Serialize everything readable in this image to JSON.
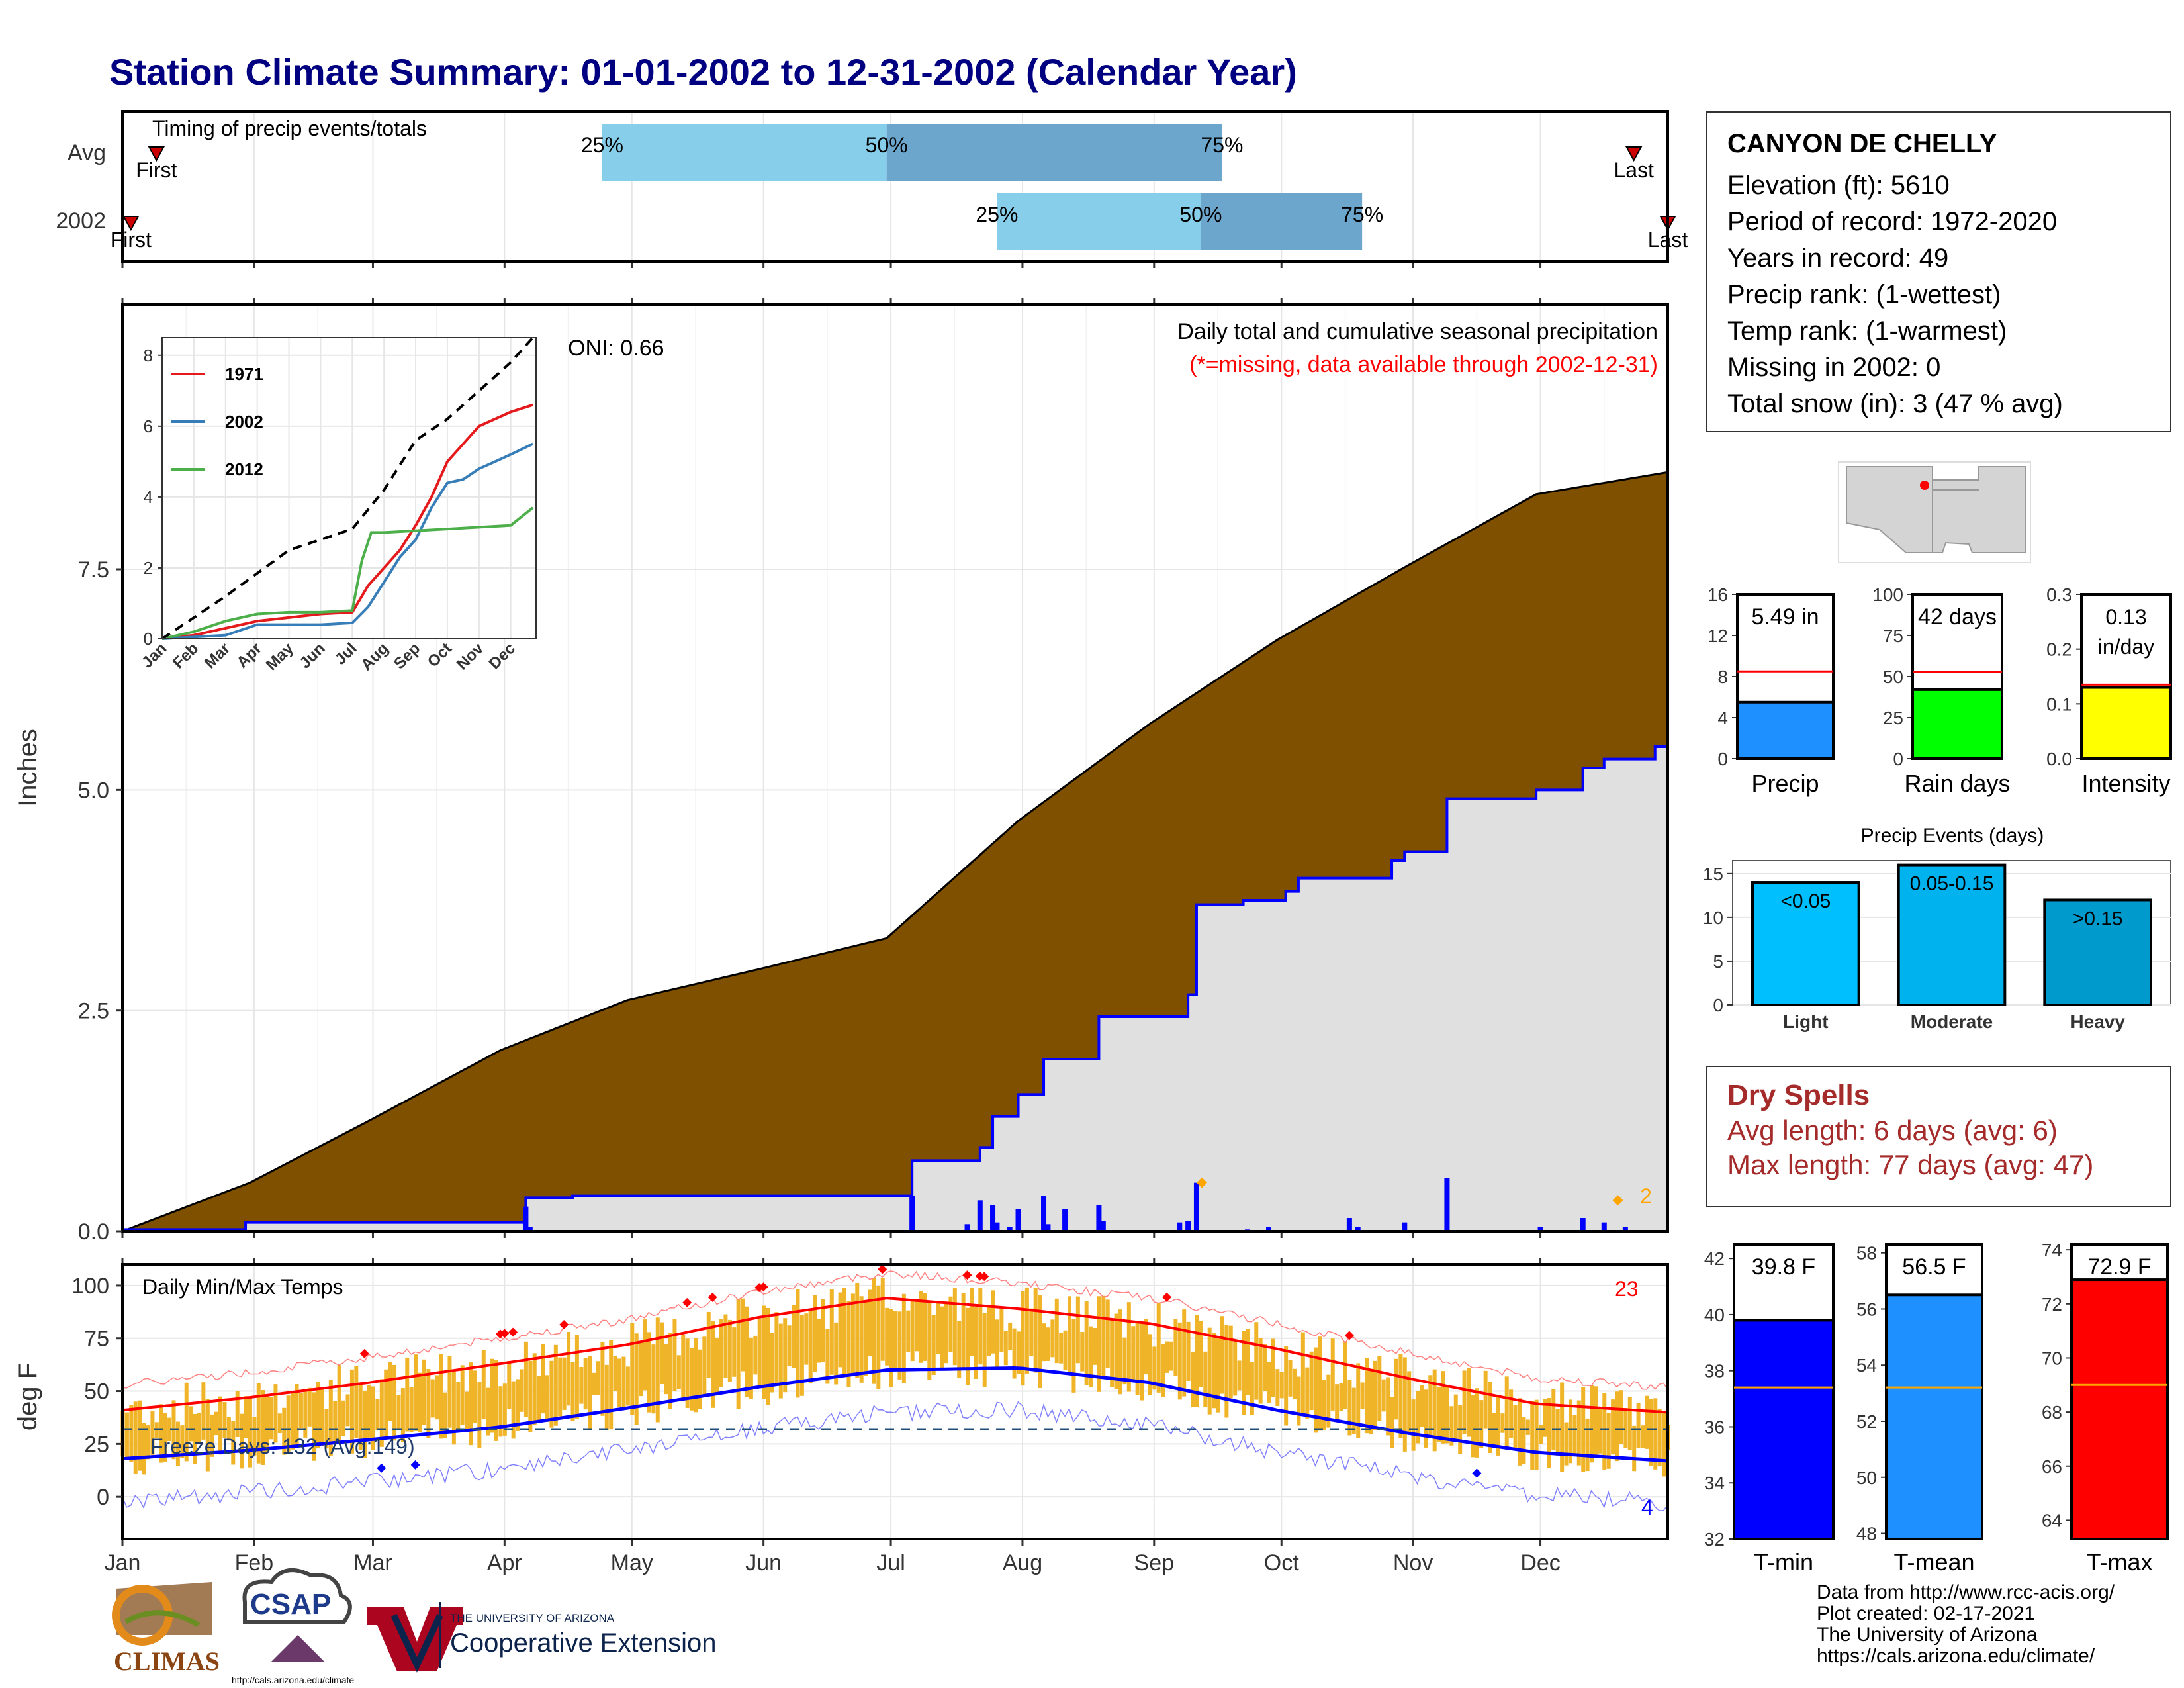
{
  "title": "Station Climate Summary: 01-01-2002 to 12-31-2002 (Calendar Year)",
  "station": {
    "name": "CANYON DE CHELLY",
    "lines": [
      "Elevation (ft): 5610",
      "Period of record: 1972-2020",
      "Years in record: 49",
      "Precip rank:  (1-wettest)",
      "Temp rank:  (1-warmest)",
      "Missing in 2002: 0",
      "Total snow (in): 3 (47 % avg)"
    ]
  },
  "dry_spells": {
    "title": "Dry Spells",
    "avg": "Avg length: 6 days (avg: 6)",
    "max": "Max length: 77 days (avg: 47)"
  },
  "footer": {
    "lines": [
      "Data from http://www.rcc-acis.org/",
      "Plot created: 02-17-2021",
      "The University of Arizona",
      "https://cals.arizona.edu/climate/"
    ],
    "logos": {
      "climas": "CLIMAS",
      "csap": "CSAP",
      "csap_url": "http://cals.arizona.edu/climate",
      "ua_small": "THE UNIVERSITY OF ARIZONA",
      "ua_big": "Cooperative Extension"
    }
  },
  "colors": {
    "title": "#000080",
    "cumulative_avg_fill": "#7F5000",
    "cumulative_year_fill": "#E0E0E0",
    "year_line": "#0000FF",
    "tmax_bar": "#F0B429",
    "tmax_line": "#FF0000",
    "tmin_line": "#0000FF",
    "missing_text": "#FF0000",
    "dry_spells": "#A52A2A"
  },
  "chart_data": [
    {
      "id": "timing",
      "type": "bar",
      "title": "Timing of precip events/totals",
      "categories": [
        "Avg",
        "2002"
      ],
      "bars": [
        {
          "row": "Avg",
          "p25": "2002-04-24",
          "p50": "2002-06-30",
          "p75": "2002-09-17",
          "first": "2002-01-09",
          "last": "2002-12-23"
        },
        {
          "row": "2002",
          "p25": "2002-07-26",
          "p50": "2002-09-12",
          "p75": "2002-10-20",
          "first": "2002-01-03",
          "last": "2002-12-31"
        }
      ],
      "labels": {
        "p25": "25%",
        "p50": "50%",
        "p75": "75%",
        "first": "First",
        "last": "Last"
      }
    },
    {
      "id": "precip",
      "type": "area",
      "ylabel": "Inches",
      "ylim": [
        0,
        10.5
      ],
      "yticks": [
        0.0,
        2.5,
        5.0,
        7.5
      ],
      "ytick_labels": [
        "0.0",
        "2.5",
        "5.0",
        "7.5"
      ],
      "oni": "ONI: 0.66",
      "caption": "Daily total and cumulative seasonal precipitation",
      "missing_note": "(*=missing, data available through 2002-12-31)",
      "snow_marker": "2",
      "avg_cumulative": {
        "doy": [
          1,
          31,
          59,
          90,
          120,
          151,
          181,
          212,
          243,
          273,
          304,
          334,
          365
        ],
        "values": [
          0,
          0.55,
          1.25,
          2.05,
          2.62,
          2.97,
          3.32,
          4.65,
          5.75,
          6.7,
          7.55,
          8.35,
          8.6
        ]
      },
      "year_steps": [
        {
          "doy": 1,
          "value": 0.02
        },
        {
          "doy": 30,
          "value": 0.1
        },
        {
          "doy": 96,
          "value": 0.38
        },
        {
          "doy": 107,
          "value": 0.4
        },
        {
          "doy": 187,
          "value": 0.8
        },
        {
          "doy": 203,
          "value": 0.95
        },
        {
          "doy": 206,
          "value": 1.3
        },
        {
          "doy": 212,
          "value": 1.55
        },
        {
          "doy": 218,
          "value": 1.95
        },
        {
          "doy": 231,
          "value": 2.43
        },
        {
          "doy": 252,
          "value": 2.68
        },
        {
          "doy": 254,
          "value": 3.7
        },
        {
          "doy": 265,
          "value": 3.75
        },
        {
          "doy": 275,
          "value": 3.85
        },
        {
          "doy": 278,
          "value": 4.0
        },
        {
          "doy": 300,
          "value": 4.2
        },
        {
          "doy": 303,
          "value": 4.3
        },
        {
          "doy": 313,
          "value": 4.9
        },
        {
          "doy": 334,
          "value": 5.0
        },
        {
          "doy": 345,
          "value": 5.25
        },
        {
          "doy": 350,
          "value": 5.35
        },
        {
          "doy": 362,
          "value": 5.49
        }
      ],
      "daily": {
        "doy": [
          96,
          97,
          187,
          200,
          203,
          206,
          207,
          210,
          212,
          218,
          219,
          223,
          231,
          232,
          250,
          252,
          254,
          266,
          271,
          290,
          292,
          303,
          313,
          335,
          345,
          350,
          355
        ],
        "values": [
          0.28,
          0.05,
          0.4,
          0.08,
          0.35,
          0.3,
          0.1,
          0.05,
          0.25,
          0.4,
          0.08,
          0.25,
          0.3,
          0.12,
          0.1,
          0.12,
          0.55,
          0.02,
          0.05,
          0.15,
          0.05,
          0.1,
          0.6,
          0.05,
          0.15,
          0.1,
          0.05
        ]
      },
      "x_ticks": [
        "Jan",
        "Feb",
        "Mar",
        "Apr",
        "May",
        "Jun",
        "Jul",
        "Aug",
        "Sep",
        "Oct",
        "Nov",
        "Dec"
      ]
    },
    {
      "id": "inset",
      "type": "line",
      "ylim": [
        0,
        8
      ],
      "yticks": [
        "0",
        "2",
        "4",
        "6",
        "8"
      ],
      "x_ticks": [
        "Jan",
        "Feb",
        "Mar",
        "Apr",
        "May",
        "Jun",
        "Jul",
        "Aug",
        "Sep",
        "Oct",
        "Nov",
        "Dec"
      ],
      "series": [
        {
          "name": "1971",
          "color": "#E41A1C",
          "x": [
            0,
            1,
            2,
            3,
            4,
            5,
            6,
            6.5,
            7,
            7.5,
            8,
            8.5,
            9,
            9.5,
            10,
            10.5,
            11,
            11.7
          ],
          "y": [
            0,
            0.1,
            0.3,
            0.5,
            0.6,
            0.7,
            0.75,
            1.5,
            2.0,
            2.5,
            3.2,
            4.0,
            5.0,
            5.5,
            6.0,
            6.2,
            6.4,
            6.6
          ]
        },
        {
          "name": "2002",
          "color": "#377EB8",
          "x": [
            0,
            1,
            2,
            3,
            4,
            5,
            6,
            6.5,
            7,
            7.5,
            8,
            8.5,
            9,
            9.5,
            10,
            10.5,
            11,
            11.7
          ],
          "y": [
            0,
            0.05,
            0.1,
            0.4,
            0.4,
            0.4,
            0.45,
            0.9,
            1.6,
            2.3,
            2.8,
            3.7,
            4.4,
            4.5,
            4.8,
            5.0,
            5.2,
            5.5
          ]
        },
        {
          "name": "2012",
          "color": "#4DAF4A",
          "x": [
            0,
            1,
            2,
            3,
            4,
            5,
            6,
            6.3,
            6.6,
            7,
            8,
            9,
            10,
            11,
            11.7
          ],
          "y": [
            0,
            0.2,
            0.5,
            0.7,
            0.75,
            0.75,
            0.8,
            2.2,
            3.0,
            3.0,
            3.05,
            3.1,
            3.15,
            3.2,
            3.7
          ]
        }
      ],
      "avg_dashed": {
        "x": [
          0,
          2,
          4,
          6,
          7,
          8,
          9,
          10,
          11,
          11.7
        ],
        "y": [
          0,
          1.2,
          2.5,
          3.1,
          4.2,
          5.6,
          6.2,
          7.0,
          7.8,
          8.5
        ]
      }
    },
    {
      "id": "temps",
      "type": "bar",
      "title": "Daily Min/Max Temps",
      "ylabel": "deg F",
      "ylim": [
        -20,
        110
      ],
      "yticks": [
        "0",
        "25",
        "50",
        "75",
        "100"
      ],
      "freeze": "Freeze Days: 132 (Avg:149)",
      "record_high_count": "23",
      "record_low_count": "4",
      "freeze_line": 32,
      "tmax_avg": {
        "doy": [
          1,
          31,
          59,
          90,
          120,
          151,
          181,
          212,
          243,
          273,
          304,
          334,
          365
        ],
        "values": [
          41,
          47,
          54,
          63,
          72,
          85,
          94,
          89,
          82,
          70,
          56,
          44,
          40
        ]
      },
      "tmin_avg": {
        "doy": [
          1,
          31,
          59,
          90,
          120,
          151,
          181,
          212,
          243,
          273,
          304,
          334,
          365
        ],
        "values": [
          18,
          22,
          27,
          33,
          42,
          52,
          60,
          61,
          54,
          41,
          30,
          21,
          17
        ]
      },
      "x_ticks": [
        "Jan",
        "Feb",
        "Mar",
        "Apr",
        "May",
        "Jun",
        "Jul",
        "Aug",
        "Sep",
        "Oct",
        "Nov",
        "Dec"
      ]
    },
    {
      "id": "precip-bar",
      "type": "bar",
      "categories": [
        "Precip"
      ],
      "values": [
        5.5
      ],
      "value_label": "5.49 in",
      "avg_line": 8.5,
      "ylim": [
        0,
        16
      ],
      "yticks": [
        "0",
        "4",
        "8",
        "12",
        "16"
      ],
      "color": "#1E90FF"
    },
    {
      "id": "raindays-bar",
      "type": "bar",
      "categories": [
        "Rain days"
      ],
      "values": [
        42
      ],
      "value_label": "42 days",
      "avg_line": 53,
      "ylim": [
        0,
        100
      ],
      "yticks": [
        "0",
        "25",
        "50",
        "75",
        "100"
      ],
      "color": "#00FF00"
    },
    {
      "id": "intensity-bar",
      "type": "bar",
      "categories": [
        "Intensity"
      ],
      "values": [
        0.13
      ],
      "value_label": [
        "0.13",
        "in/day"
      ],
      "avg_line": 0.135,
      "ylim": [
        0,
        0.3
      ],
      "yticks": [
        "0.0",
        "0.1",
        "0.2",
        "0.3"
      ],
      "color": "#FFFF00"
    },
    {
      "id": "events",
      "type": "bar",
      "title": "Precip Events (days)",
      "categories": [
        "Light",
        "Moderate",
        "Heavy"
      ],
      "values": [
        14,
        16,
        12
      ],
      "bar_labels": [
        "<0.05",
        "0.05-0.15",
        ">0.15"
      ],
      "colors": [
        "#00BFFF",
        "#00B2EE",
        "#009ACD"
      ],
      "ylim": [
        0,
        16.5
      ],
      "yticks": [
        "0",
        "5",
        "10",
        "15"
      ]
    },
    {
      "id": "tmin-bar",
      "type": "bar",
      "categories": [
        "T-min"
      ],
      "values": [
        39.8
      ],
      "value_label": "39.8 F",
      "avg_line": 37.4,
      "ylim": [
        32,
        42.5
      ],
      "yticks": [
        "32",
        "34",
        "36",
        "38",
        "40",
        "42"
      ],
      "color": "#0000FF"
    },
    {
      "id": "tmean-bar",
      "type": "bar",
      "categories": [
        "T-mean"
      ],
      "values": [
        56.5
      ],
      "value_label": "56.5 F",
      "avg_line": 53.2,
      "ylim": [
        47.8,
        58.3
      ],
      "yticks": [
        "48",
        "50",
        "52",
        "54",
        "56",
        "58"
      ],
      "color": "#1E90FF"
    },
    {
      "id": "tmax-bar",
      "type": "bar",
      "categories": [
        "T-max"
      ],
      "values": [
        72.9
      ],
      "value_label": "72.9 F",
      "avg_line": 69,
      "ylim": [
        63.3,
        74.2
      ],
      "yticks": [
        "64",
        "66",
        "68",
        "70",
        "72",
        "74"
      ],
      "color": "#FF0000"
    }
  ]
}
